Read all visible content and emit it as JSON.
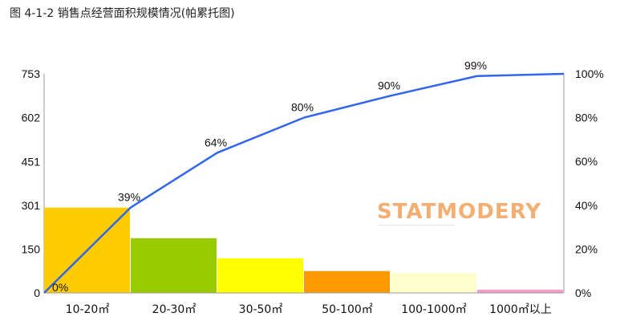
{
  "title": "图 4-1-2  销售点经营面积规模情况(帕累托图)",
  "watermark": {
    "main": "STATMODERY",
    "sub": "———————————————————"
  },
  "chart_data": {
    "type": "bar",
    "title": "图 4-1-2  销售点经营面积规模情况(帕累托图)",
    "categories": [
      "10-20㎡",
      "20-30㎡",
      "30-50㎡",
      "50-100㎡",
      "100-1000㎡",
      "1000㎡以上"
    ],
    "values": [
      293,
      188,
      119,
      75,
      67,
      11
    ],
    "bar_colors": [
      "#ffcc00",
      "#99cc00",
      "#ffff00",
      "#ff9900",
      "#ffffcc",
      "#ff99cc"
    ],
    "cumulative_percent": [
      0,
      39,
      64,
      80,
      90,
      99,
      100
    ],
    "cumulative_labels": [
      "0%",
      "39%",
      "64%",
      "80%",
      "90%",
      "99%"
    ],
    "line_color": "#3366ee",
    "ylim": [
      0,
      753
    ],
    "y_ticks": [
      0,
      150,
      301,
      451,
      602,
      753
    ],
    "y2lim": [
      0,
      100
    ],
    "y2_ticks": [
      "0%",
      "20%",
      "40%",
      "60%",
      "80%",
      "100%"
    ],
    "xlabel": "",
    "ylabel": ""
  }
}
